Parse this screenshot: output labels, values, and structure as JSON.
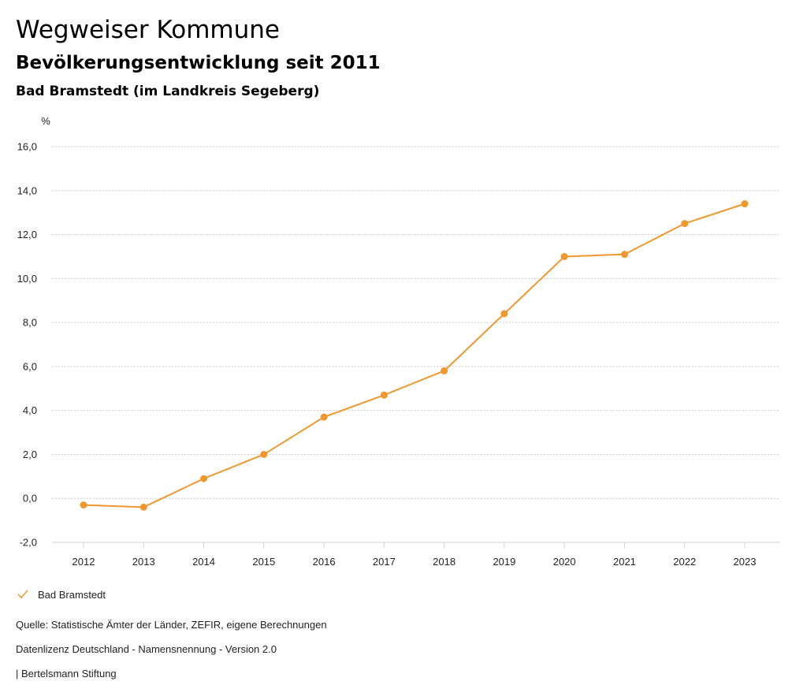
{
  "header": {
    "title": "Wegweiser Kommune",
    "subtitle": "Bevölkerungsentwicklung seit 2011",
    "region": "Bad Bramstedt (im Landkreis Segeberg)"
  },
  "colors": {
    "series": "#f0972e",
    "grid": "#b8b8b8"
  },
  "chart_data": {
    "type": "line",
    "title": "Bevölkerungsentwicklung seit 2011",
    "ylabel": "%",
    "ylim": [
      -2,
      16
    ],
    "yticks": [
      -2,
      0,
      2,
      4,
      6,
      8,
      10,
      12,
      14,
      16
    ],
    "ytick_labels": [
      "-2,0",
      "0,0",
      "2,0",
      "4,0",
      "6,0",
      "8,0",
      "10,0",
      "12,0",
      "14,0",
      "16,0"
    ],
    "x": [
      "2012",
      "2013",
      "2014",
      "2015",
      "2016",
      "2017",
      "2018",
      "2019",
      "2020",
      "2021",
      "2022",
      "2023"
    ],
    "grid": true,
    "legend_position": "bottom-left",
    "series": [
      {
        "name": "Bad Bramstedt",
        "values": [
          -0.3,
          -0.4,
          0.9,
          2.0,
          3.7,
          4.7,
          5.8,
          8.4,
          11.0,
          11.1,
          12.5,
          13.4
        ]
      }
    ]
  },
  "legend": {
    "items": [
      {
        "label": "Bad Bramstedt"
      }
    ]
  },
  "footer": {
    "source": "Quelle: Statistische Ämter der Länder, ZEFIR, eigene Berechnungen",
    "license": "Datenlizenz Deutschland - Namensnennung - Version 2.0",
    "publisher": "| Bertelsmann Stiftung"
  }
}
